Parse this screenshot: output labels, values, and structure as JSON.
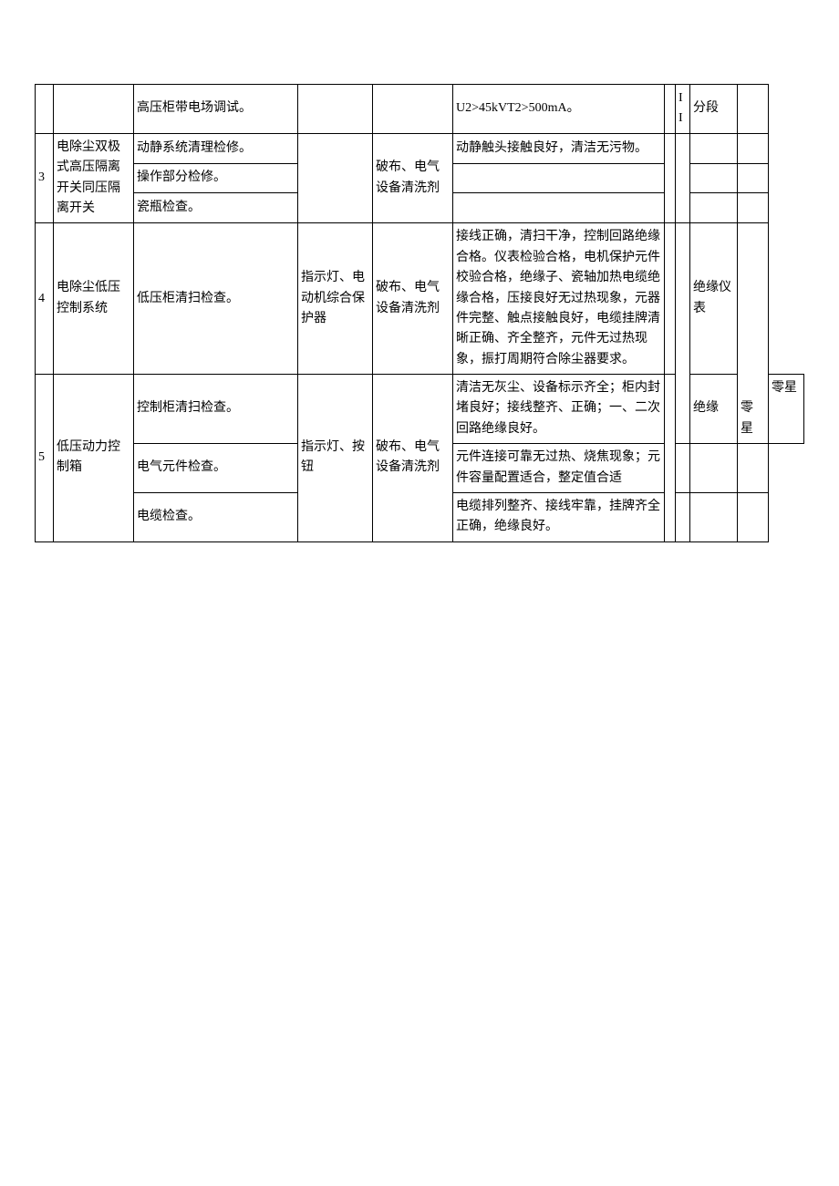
{
  "rows": {
    "r1": {
      "work": "高压柜带电场调试。",
      "quality": "U2>45kVT2>500mA。",
      "col_b": "II",
      "tool": "分段"
    },
    "r2": {
      "seq": "3",
      "equip": "电除尘双极式高压隔离开关同压隔离开关",
      "work1": "动静系统清理检修。",
      "work2": "操作部分检修。",
      "work3": "瓷瓶检查。",
      "material": "破布、电气设备清洗剂",
      "quality1": "动静触头接触良好，清洁无污物。"
    },
    "r3": {
      "seq": "4",
      "equip": "电除尘低压控制系统",
      "work": "低压柜清扫检查。",
      "spare": "指示灯、电动机综合保护器",
      "material": "破布、电气设备清洗剂",
      "quality": "接线正确，清扫干净，控制回路绝缘合格。仪表检验合格，电机保护元件校验合格，绝缘子、瓷轴加热电缆绝缘合格，压接良好无过热现象，元器件完整、触点接触良好，电缆挂牌清晰正确、齐全整齐，元件无过热现象，振打周期符合除尘器要求。",
      "tool": "绝缘仪表",
      "end": "零星"
    },
    "r4": {
      "seq": "5",
      "equip": "低压动力控制箱",
      "spare": "指示灯、按钮",
      "material": "破布、电气设备清洗剂",
      "work1": "控制柜清扫检查。",
      "quality1": "清洁无灰尘、设备标示齐全；柜内封堵良好；接线整齐、正确；一、二次回路绝缘良好。",
      "tool1": "绝缘",
      "end1": "零星",
      "work2": "电气元件检查。",
      "quality2": "元件连接可靠无过热、烧焦现象；元件容量配置适合，整定值合适",
      "work3": "电缆检查。",
      "quality3": "电缆排列整齐、接线牢靠，挂牌齐全正确，绝缘良好。"
    }
  }
}
